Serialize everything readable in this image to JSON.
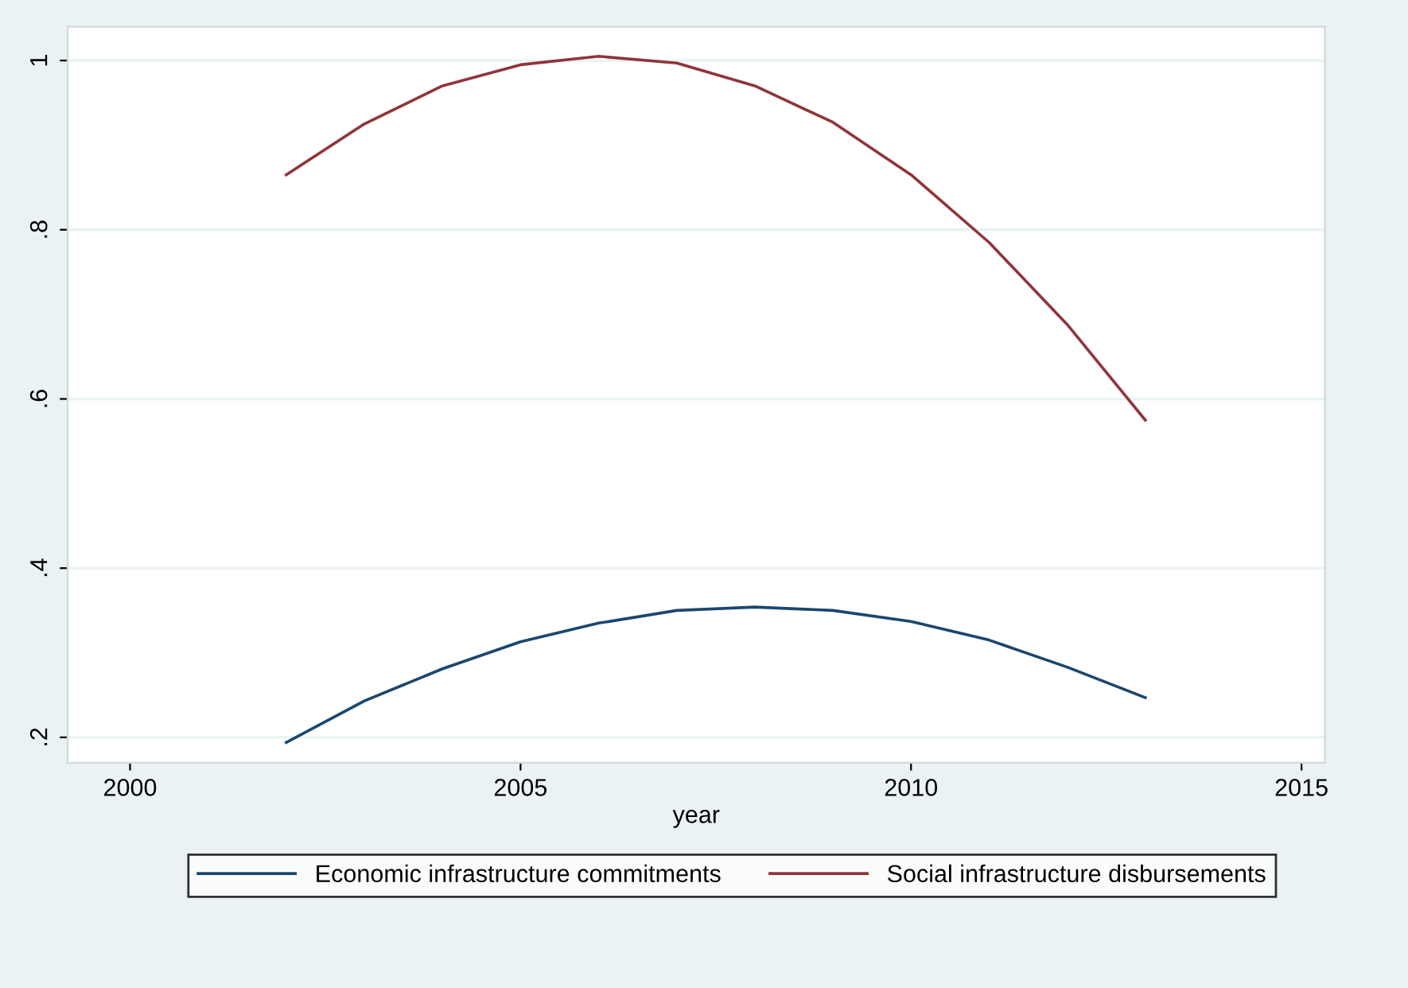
{
  "chart_data": {
    "type": "line",
    "xlabel": "year",
    "x": [
      2002,
      2003,
      2004,
      2005,
      2006,
      2007,
      2008,
      2009,
      2010,
      2011,
      2012,
      2013
    ],
    "series": [
      {
        "name": "Economic infrastructure commitments",
        "color": "#1a476f",
        "values": [
          0.194,
          0.243,
          0.281,
          0.313,
          0.335,
          0.35,
          0.354,
          0.35,
          0.337,
          0.315,
          0.283,
          0.247
        ]
      },
      {
        "name": "Social infrastructure disbursements",
        "color": "#90353b",
        "values": [
          0.865,
          0.925,
          0.97,
          0.995,
          1.005,
          0.997,
          0.97,
          0.927,
          0.865,
          0.785,
          0.688,
          0.575
        ]
      }
    ],
    "xlim": [
      1999.2,
      2015.3
    ],
    "xticks": [
      2000,
      2005,
      2010,
      2015
    ],
    "ylim": [
      0.17,
      1.04
    ],
    "yticks": [
      {
        "value": 0.2,
        "label": ".2"
      },
      {
        "value": 0.4,
        "label": ".4"
      },
      {
        "value": 0.6,
        "label": ".6"
      },
      {
        "value": 0.8,
        "label": ".8"
      },
      {
        "value": 1,
        "label": "1"
      }
    ],
    "grid": "y",
    "legend": "bottom",
    "marker": "none",
    "line_style": "solid"
  }
}
